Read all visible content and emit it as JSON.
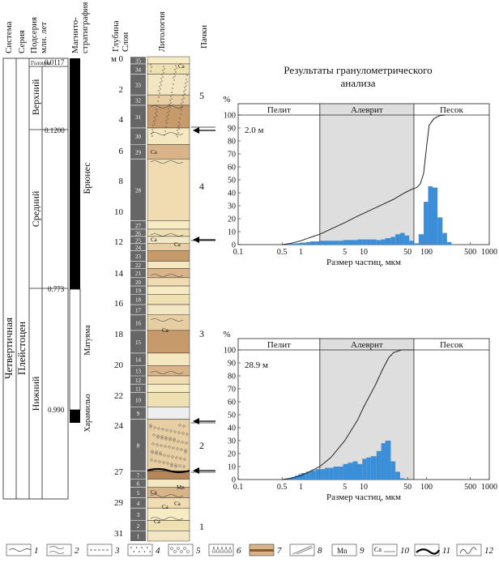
{
  "columns": {
    "system": "Система",
    "series": "Серия",
    "subseries": "Подсерия",
    "ma": "млн. лет",
    "magneto": "Магнито-",
    "magneto2": "стратиграфия",
    "depth1": "Глубина",
    "depth2": "м",
    "layers": "Слои",
    "lithology": "Литология",
    "packs": "Пачки"
  },
  "stratigraphy": {
    "system": "Четвертичная",
    "series": "Плейстоцен",
    "holocene": "Голоцен",
    "upper": "Верхний",
    "middle": "Средний",
    "lower": "Нижний",
    "ages": [
      "0.0117",
      "0.1200",
      "0.773",
      "0.990"
    ],
    "brunhes": "Брюнес",
    "matuyama": "Матуяма",
    "jaramillo": "Харамильо"
  },
  "depth_ticks": [
    "0",
    "2",
    "4",
    "6",
    "8",
    "10",
    "12",
    "14",
    "16",
    "18",
    "20",
    "22",
    "24",
    "27",
    "29",
    "31"
  ],
  "layer_numbers": [
    "35",
    "34",
    "33",
    "32",
    "31",
    "30",
    "29",
    "28",
    "27",
    "26",
    "25",
    "24",
    "23",
    "22",
    "21",
    "20",
    "19",
    "18",
    "17",
    "16",
    "15",
    "14",
    "13",
    "12",
    "11",
    "10",
    "9",
    "8",
    "7",
    "6",
    "5",
    "4",
    "3",
    "2",
    "1"
  ],
  "pack_numbers": [
    "5",
    "4",
    "3",
    "2",
    "1"
  ],
  "lithology_labels": [
    "Ca",
    "Ca",
    "Ca",
    "Ca",
    "Ca",
    "Mn",
    "Ca",
    "Ca",
    "Ca",
    "Ca"
  ],
  "chart_title_line1": "Результаты гранулометрического",
  "chart_title_line2": "анализа",
  "legend": {
    "numbers": [
      "1",
      "2",
      "3",
      "4",
      "5",
      "6",
      "7",
      "8",
      "9",
      "10",
      "11",
      "12"
    ],
    "mn": "Mn",
    "ca": "Ca"
  },
  "chart_data": [
    {
      "type": "bar",
      "annotation": "2.0 м",
      "zones": [
        "Пелит",
        "Алеврит",
        "Песок"
      ],
      "xlabel": "Размер частиц, мкм",
      "ylabel": "%",
      "x_scale": "log",
      "xlim": [
        0.1,
        1000
      ],
      "ylim": [
        0,
        100
      ],
      "x_ticks": [
        "0.1",
        "0.5",
        "1",
        "5",
        "10",
        "50",
        "100",
        "500",
        "1000"
      ],
      "y_ticks": [
        "0",
        "10",
        "20",
        "30",
        "40",
        "50",
        "60",
        "70",
        "80",
        "90",
        "100"
      ],
      "shaded_silt_range_um": [
        2,
        63
      ],
      "bars": {
        "x": [
          0.6,
          0.7,
          0.8,
          0.9,
          1.0,
          1.2,
          1.4,
          1.7,
          2.0,
          2.4,
          2.8,
          3.3,
          4.0,
          4.7,
          5.6,
          6.7,
          8,
          9.5,
          11,
          13,
          16,
          19,
          22,
          27,
          32,
          38,
          45,
          53,
          63,
          75,
          90,
          106,
          125,
          150,
          180,
          212
        ],
        "y": [
          0.5,
          0.8,
          1,
          1.2,
          1.5,
          2,
          2.5,
          2.5,
          3,
          3,
          3,
          3,
          3,
          3.5,
          3.5,
          3.5,
          4,
          4,
          4,
          4,
          3.5,
          4,
          5,
          6,
          8,
          9,
          7,
          3,
          1,
          8,
          33,
          45,
          44,
          21,
          9,
          2
        ]
      },
      "cumulative": {
        "x": [
          0.5,
          0.7,
          1,
          1.5,
          2,
          3,
          5,
          8,
          12,
          20,
          30,
          45,
          60,
          70,
          80,
          90,
          100,
          110,
          130,
          160,
          200
        ],
        "y": [
          0,
          1,
          3,
          6,
          8,
          12,
          17,
          22,
          26,
          31,
          35,
          40,
          43,
          44,
          47,
          55,
          75,
          92,
          97,
          99.5,
          100
        ]
      }
    },
    {
      "type": "bar",
      "annotation": "28.9 м",
      "zones": [
        "Пелит",
        "Алеврит",
        "Песок"
      ],
      "xlabel": "Размер частиц, мкм",
      "ylabel": "%",
      "x_scale": "log",
      "xlim": [
        0.1,
        1000
      ],
      "ylim": [
        0,
        100
      ],
      "x_ticks": [
        "0.1",
        "0.5",
        "1",
        "5",
        "10",
        "50",
        "100",
        "500",
        "1000"
      ],
      "y_ticks": [
        "0",
        "10",
        "20",
        "30",
        "40",
        "50",
        "60",
        "70",
        "80",
        "90",
        "100"
      ],
      "shaded_silt_range_um": [
        2,
        63
      ],
      "bars": {
        "x": [
          0.6,
          0.7,
          0.8,
          0.9,
          1.0,
          1.2,
          1.4,
          1.7,
          2.0,
          2.4,
          2.8,
          3.3,
          4.0,
          4.7,
          5.6,
          6.7,
          8,
          9.5,
          11,
          13,
          16,
          19,
          22,
          27,
          32,
          38
        ],
        "y": [
          1,
          2,
          3,
          4,
          5,
          6,
          7,
          8,
          8,
          9,
          9,
          10,
          10,
          12,
          13,
          14,
          12,
          16,
          17,
          18,
          22,
          28,
          30,
          14,
          6,
          1
        ]
      },
      "cumulative": {
        "x": [
          0.5,
          0.7,
          1,
          1.5,
          2,
          3,
          5,
          8,
          10,
          15,
          20,
          25,
          30,
          40,
          60
        ],
        "y": [
          0,
          1,
          3,
          7,
          10,
          17,
          30,
          46,
          56,
          72,
          85,
          94,
          98,
          100,
          100
        ]
      }
    }
  ]
}
